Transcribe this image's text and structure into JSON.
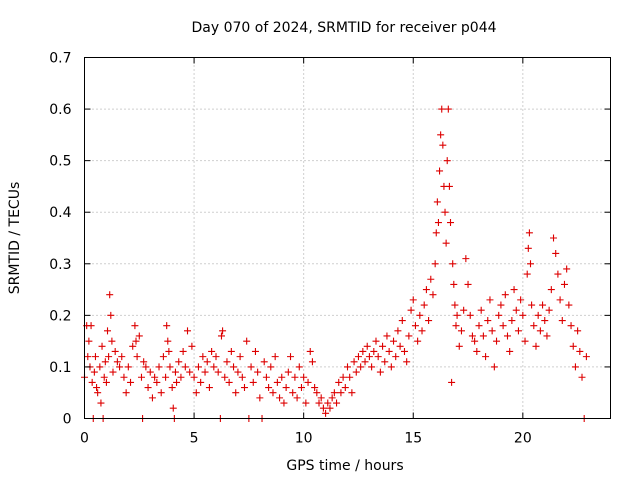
{
  "chart_data": {
    "type": "scatter",
    "title": "Day 070 of 2024, SRMTID for receiver p044",
    "xlabel": "GPS time / hours",
    "ylabel": "SRMTID / TECUs",
    "xlim": [
      0,
      24
    ],
    "ylim": [
      0,
      0.7
    ],
    "xticks": [
      0,
      5,
      10,
      15,
      20
    ],
    "yticks": [
      0,
      0.1,
      0.2,
      0.3,
      0.4,
      0.5,
      0.6,
      0.7
    ],
    "xtick_labels": [
      "0",
      "5",
      "10",
      "15",
      "20"
    ],
    "ytick_labels": [
      "0",
      "0.1",
      "0.2",
      "0.3",
      "0.4",
      "0.5",
      "0.6",
      "0.7"
    ],
    "grid": true,
    "marker": "+",
    "color": "#dd0000",
    "series": [
      {
        "name": "SRMTID",
        "points": [
          [
            0.0,
            0.08
          ],
          [
            0.1,
            0.18
          ],
          [
            0.15,
            0.12
          ],
          [
            0.2,
            0.15
          ],
          [
            0.25,
            0.1
          ],
          [
            0.3,
            0.18
          ],
          [
            0.35,
            0.07
          ],
          [
            0.4,
            0.0
          ],
          [
            0.45,
            0.09
          ],
          [
            0.5,
            0.12
          ],
          [
            0.55,
            0.06
          ],
          [
            0.6,
            0.05
          ],
          [
            0.7,
            0.1
          ],
          [
            0.75,
            0.03
          ],
          [
            0.8,
            0.14
          ],
          [
            0.85,
            0.0
          ],
          [
            0.9,
            0.08
          ],
          [
            0.95,
            0.11
          ],
          [
            1.0,
            0.07
          ],
          [
            1.05,
            0.17
          ],
          [
            1.1,
            0.12
          ],
          [
            1.15,
            0.24
          ],
          [
            1.2,
            0.2
          ],
          [
            1.25,
            0.15
          ],
          [
            1.3,
            0.09
          ],
          [
            1.4,
            0.13
          ],
          [
            1.5,
            0.11
          ],
          [
            1.6,
            0.1
          ],
          [
            1.7,
            0.12
          ],
          [
            1.8,
            0.08
          ],
          [
            1.9,
            0.05
          ],
          [
            2.0,
            0.1
          ],
          [
            2.1,
            0.07
          ],
          [
            2.2,
            0.14
          ],
          [
            2.3,
            0.18
          ],
          [
            2.35,
            0.15
          ],
          [
            2.4,
            0.12
          ],
          [
            2.5,
            0.16
          ],
          [
            2.6,
            0.08
          ],
          [
            2.65,
            0.0
          ],
          [
            2.7,
            0.11
          ],
          [
            2.8,
            0.1
          ],
          [
            2.9,
            0.06
          ],
          [
            3.0,
            0.09
          ],
          [
            3.1,
            0.04
          ],
          [
            3.2,
            0.08
          ],
          [
            3.3,
            0.07
          ],
          [
            3.4,
            0.1
          ],
          [
            3.5,
            0.05
          ],
          [
            3.6,
            0.12
          ],
          [
            3.7,
            0.08
          ],
          [
            3.75,
            0.18
          ],
          [
            3.8,
            0.15
          ],
          [
            3.85,
            0.13
          ],
          [
            3.9,
            0.1
          ],
          [
            4.0,
            0.06
          ],
          [
            4.05,
            0.02
          ],
          [
            4.1,
            0.0
          ],
          [
            4.15,
            0.09
          ],
          [
            4.2,
            0.07
          ],
          [
            4.3,
            0.11
          ],
          [
            4.4,
            0.08
          ],
          [
            4.5,
            0.13
          ],
          [
            4.6,
            0.1
          ],
          [
            4.7,
            0.17
          ],
          [
            4.8,
            0.09
          ],
          [
            4.9,
            0.14
          ],
          [
            5.0,
            0.08
          ],
          [
            5.1,
            0.05
          ],
          [
            5.2,
            0.1
          ],
          [
            5.3,
            0.07
          ],
          [
            5.4,
            0.12
          ],
          [
            5.5,
            0.09
          ],
          [
            5.6,
            0.11
          ],
          [
            5.7,
            0.06
          ],
          [
            5.8,
            0.13
          ],
          [
            5.9,
            0.1
          ],
          [
            6.0,
            0.12
          ],
          [
            6.1,
            0.09
          ],
          [
            6.2,
            0.0
          ],
          [
            6.25,
            0.16
          ],
          [
            6.3,
            0.17
          ],
          [
            6.4,
            0.08
          ],
          [
            6.5,
            0.11
          ],
          [
            6.6,
            0.07
          ],
          [
            6.7,
            0.13
          ],
          [
            6.8,
            0.1
          ],
          [
            6.9,
            0.05
          ],
          [
            7.0,
            0.09
          ],
          [
            7.1,
            0.12
          ],
          [
            7.2,
            0.08
          ],
          [
            7.3,
            0.06
          ],
          [
            7.4,
            0.15
          ],
          [
            7.5,
            0.0
          ],
          [
            7.6,
            0.1
          ],
          [
            7.7,
            0.07
          ],
          [
            7.8,
            0.13
          ],
          [
            7.9,
            0.09
          ],
          [
            8.0,
            0.04
          ],
          [
            8.1,
            0.0
          ],
          [
            8.2,
            0.11
          ],
          [
            8.3,
            0.08
          ],
          [
            8.4,
            0.06
          ],
          [
            8.5,
            0.1
          ],
          [
            8.6,
            0.05
          ],
          [
            8.7,
            0.12
          ],
          [
            8.8,
            0.07
          ],
          [
            8.9,
            0.04
          ],
          [
            9.0,
            0.08
          ],
          [
            9.1,
            0.03
          ],
          [
            9.2,
            0.06
          ],
          [
            9.3,
            0.09
          ],
          [
            9.4,
            0.12
          ],
          [
            9.5,
            0.05
          ],
          [
            9.6,
            0.08
          ],
          [
            9.7,
            0.04
          ],
          [
            9.8,
            0.1
          ],
          [
            9.9,
            0.06
          ],
          [
            10.0,
            0.08
          ],
          [
            10.1,
            0.03
          ],
          [
            10.2,
            0.07
          ],
          [
            10.3,
            0.13
          ],
          [
            10.4,
            0.11
          ],
          [
            10.5,
            0.06
          ],
          [
            10.6,
            0.05
          ],
          [
            10.7,
            0.03
          ],
          [
            10.8,
            0.04
          ],
          [
            10.9,
            0.02
          ],
          [
            11.0,
            0.01
          ],
          [
            11.1,
            0.03
          ],
          [
            11.2,
            0.02
          ],
          [
            11.3,
            0.04
          ],
          [
            11.4,
            0.05
          ],
          [
            11.5,
            0.03
          ],
          [
            11.6,
            0.07
          ],
          [
            11.7,
            0.05
          ],
          [
            11.8,
            0.08
          ],
          [
            11.9,
            0.06
          ],
          [
            12.0,
            0.1
          ],
          [
            12.1,
            0.08
          ],
          [
            12.2,
            0.05
          ],
          [
            12.3,
            0.11
          ],
          [
            12.4,
            0.09
          ],
          [
            12.5,
            0.12
          ],
          [
            12.6,
            0.1
          ],
          [
            12.7,
            0.13
          ],
          [
            12.8,
            0.11
          ],
          [
            12.9,
            0.14
          ],
          [
            13.0,
            0.12
          ],
          [
            13.1,
            0.1
          ],
          [
            13.2,
            0.13
          ],
          [
            13.3,
            0.15
          ],
          [
            13.4,
            0.12
          ],
          [
            13.5,
            0.09
          ],
          [
            13.6,
            0.14
          ],
          [
            13.7,
            0.11
          ],
          [
            13.8,
            0.16
          ],
          [
            13.9,
            0.13
          ],
          [
            14.0,
            0.1
          ],
          [
            14.1,
            0.15
          ],
          [
            14.2,
            0.12
          ],
          [
            14.3,
            0.17
          ],
          [
            14.4,
            0.14
          ],
          [
            14.5,
            0.19
          ],
          [
            14.6,
            0.13
          ],
          [
            14.7,
            0.11
          ],
          [
            14.8,
            0.16
          ],
          [
            14.9,
            0.21
          ],
          [
            15.0,
            0.23
          ],
          [
            15.1,
            0.18
          ],
          [
            15.2,
            0.15
          ],
          [
            15.3,
            0.2
          ],
          [
            15.4,
            0.17
          ],
          [
            15.5,
            0.22
          ],
          [
            15.6,
            0.25
          ],
          [
            15.7,
            0.19
          ],
          [
            15.8,
            0.27
          ],
          [
            15.9,
            0.24
          ],
          [
            16.0,
            0.3
          ],
          [
            16.05,
            0.36
          ],
          [
            16.1,
            0.42
          ],
          [
            16.15,
            0.38
          ],
          [
            16.2,
            0.48
          ],
          [
            16.25,
            0.55
          ],
          [
            16.3,
            0.6
          ],
          [
            16.35,
            0.53
          ],
          [
            16.4,
            0.45
          ],
          [
            16.45,
            0.4
          ],
          [
            16.5,
            0.34
          ],
          [
            16.55,
            0.5
          ],
          [
            16.6,
            0.6
          ],
          [
            16.65,
            0.45
          ],
          [
            16.7,
            0.38
          ],
          [
            16.75,
            0.07
          ],
          [
            16.8,
            0.3
          ],
          [
            16.85,
            0.26
          ],
          [
            16.9,
            0.22
          ],
          [
            16.95,
            0.18
          ],
          [
            17.0,
            0.2
          ],
          [
            17.1,
            0.14
          ],
          [
            17.2,
            0.17
          ],
          [
            17.3,
            0.21
          ],
          [
            17.4,
            0.31
          ],
          [
            17.5,
            0.26
          ],
          [
            17.6,
            0.2
          ],
          [
            17.7,
            0.16
          ],
          [
            17.8,
            0.15
          ],
          [
            17.9,
            0.13
          ],
          [
            18.0,
            0.18
          ],
          [
            18.1,
            0.21
          ],
          [
            18.2,
            0.16
          ],
          [
            18.3,
            0.12
          ],
          [
            18.4,
            0.19
          ],
          [
            18.5,
            0.23
          ],
          [
            18.6,
            0.17
          ],
          [
            18.7,
            0.1
          ],
          [
            18.8,
            0.15
          ],
          [
            18.9,
            0.2
          ],
          [
            19.0,
            0.22
          ],
          [
            19.1,
            0.18
          ],
          [
            19.2,
            0.24
          ],
          [
            19.3,
            0.16
          ],
          [
            19.4,
            0.13
          ],
          [
            19.5,
            0.19
          ],
          [
            19.6,
            0.25
          ],
          [
            19.7,
            0.21
          ],
          [
            19.8,
            0.17
          ],
          [
            19.9,
            0.23
          ],
          [
            20.0,
            0.2
          ],
          [
            20.1,
            0.15
          ],
          [
            20.2,
            0.28
          ],
          [
            20.25,
            0.33
          ],
          [
            20.3,
            0.36
          ],
          [
            20.35,
            0.3
          ],
          [
            20.4,
            0.22
          ],
          [
            20.5,
            0.18
          ],
          [
            20.6,
            0.14
          ],
          [
            20.7,
            0.2
          ],
          [
            20.8,
            0.17
          ],
          [
            20.9,
            0.22
          ],
          [
            21.0,
            0.19
          ],
          [
            21.1,
            0.16
          ],
          [
            21.2,
            0.21
          ],
          [
            21.3,
            0.25
          ],
          [
            21.4,
            0.35
          ],
          [
            21.5,
            0.32
          ],
          [
            21.6,
            0.28
          ],
          [
            21.7,
            0.23
          ],
          [
            21.8,
            0.19
          ],
          [
            21.9,
            0.26
          ],
          [
            22.0,
            0.29
          ],
          [
            22.1,
            0.22
          ],
          [
            22.2,
            0.18
          ],
          [
            22.3,
            0.14
          ],
          [
            22.4,
            0.1
          ],
          [
            22.5,
            0.17
          ],
          [
            22.6,
            0.13
          ],
          [
            22.7,
            0.08
          ],
          [
            22.8,
            0.0
          ],
          [
            22.9,
            0.12
          ]
        ]
      }
    ]
  }
}
